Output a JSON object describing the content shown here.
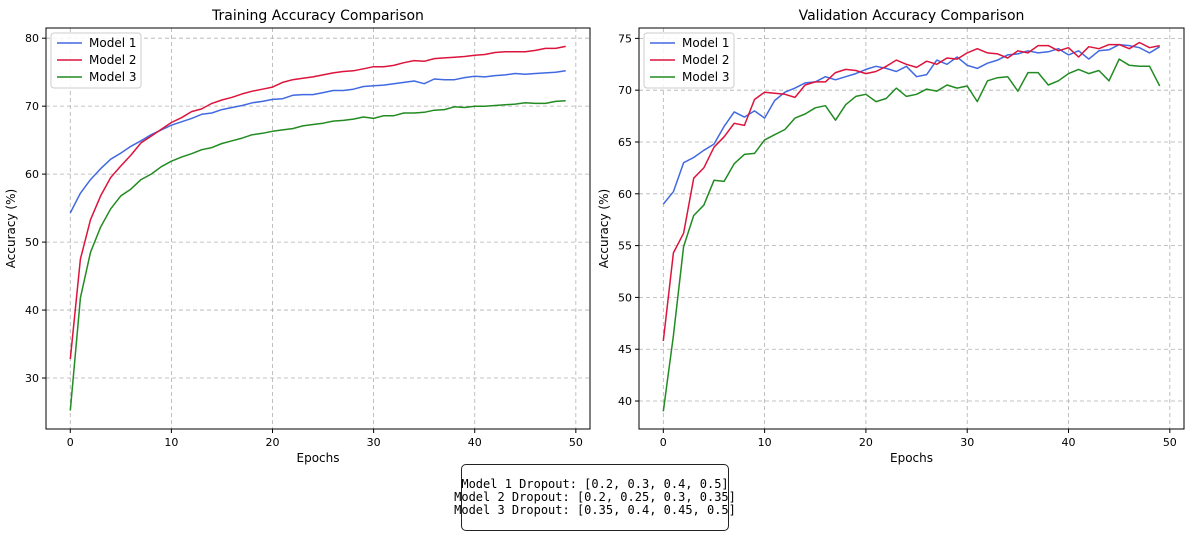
{
  "chart_data": [
    {
      "type": "line",
      "title": "Training Accuracy Comparison",
      "xlabel": "Epochs",
      "ylabel": "Accuracy (%)",
      "xlim": [
        -2.4,
        51.4
      ],
      "ylim": [
        22.5,
        81.5
      ],
      "xticks": [
        0,
        10,
        20,
        30,
        40,
        50
      ],
      "yticks": [
        30,
        40,
        50,
        60,
        70,
        80
      ],
      "grid": true,
      "legend_position": "top-left",
      "x": [
        0,
        1,
        2,
        3,
        4,
        5,
        6,
        7,
        8,
        9,
        10,
        11,
        12,
        13,
        14,
        15,
        16,
        17,
        18,
        19,
        20,
        21,
        22,
        23,
        24,
        25,
        26,
        27,
        28,
        29,
        30,
        31,
        32,
        33,
        34,
        35,
        36,
        37,
        38,
        39,
        40,
        41,
        42,
        43,
        44,
        45,
        46,
        47,
        48,
        49
      ],
      "series": [
        {
          "name": "Model 1",
          "color": "#4169E1",
          "values": [
            54.3,
            57.2,
            59.2,
            60.8,
            62.2,
            63.1,
            64.1,
            64.9,
            65.8,
            66.5,
            67.2,
            67.7,
            68.2,
            68.8,
            69.0,
            69.5,
            69.8,
            70.1,
            70.5,
            70.7,
            71.0,
            71.1,
            71.6,
            71.7,
            71.7,
            72.0,
            72.3,
            72.3,
            72.5,
            72.9,
            73.0,
            73.1,
            73.3,
            73.5,
            73.7,
            73.3,
            74.0,
            73.9,
            73.9,
            74.2,
            74.4,
            74.3,
            74.5,
            74.6,
            74.8,
            74.7,
            74.8,
            74.9,
            75.0,
            75.2
          ]
        },
        {
          "name": "Model 2",
          "color": "#DC143C",
          "values": [
            32.8,
            47.5,
            53.3,
            56.8,
            59.5,
            61.2,
            62.8,
            64.6,
            65.6,
            66.6,
            67.6,
            68.3,
            69.2,
            69.6,
            70.4,
            70.9,
            71.3,
            71.8,
            72.2,
            72.5,
            72.8,
            73.5,
            73.9,
            74.1,
            74.3,
            74.6,
            74.9,
            75.1,
            75.2,
            75.5,
            75.8,
            75.8,
            76.0,
            76.4,
            76.7,
            76.6,
            77.0,
            77.1,
            77.2,
            77.3,
            77.5,
            77.6,
            77.9,
            78.0,
            78.0,
            78.0,
            78.2,
            78.5,
            78.5,
            78.8
          ]
        },
        {
          "name": "Model 3",
          "color": "#228B22",
          "values": [
            25.2,
            41.8,
            48.5,
            52.2,
            54.9,
            56.8,
            57.8,
            59.2,
            60.0,
            61.1,
            61.9,
            62.5,
            63.0,
            63.6,
            63.9,
            64.5,
            64.9,
            65.3,
            65.8,
            66.0,
            66.3,
            66.5,
            66.7,
            67.1,
            67.3,
            67.5,
            67.8,
            67.9,
            68.1,
            68.4,
            68.2,
            68.6,
            68.6,
            69.0,
            69.0,
            69.1,
            69.4,
            69.5,
            69.9,
            69.8,
            70.0,
            70.0,
            70.1,
            70.2,
            70.3,
            70.5,
            70.4,
            70.4,
            70.7,
            70.8
          ]
        }
      ]
    },
    {
      "type": "line",
      "title": "Validation Accuracy Comparison",
      "xlabel": "Epochs",
      "ylabel": "Accuracy (%)",
      "xlim": [
        -2.4,
        51.4
      ],
      "ylim": [
        37.3,
        76.0
      ],
      "xticks": [
        0,
        10,
        20,
        30,
        40,
        50
      ],
      "yticks": [
        40,
        45,
        50,
        55,
        60,
        65,
        70,
        75
      ],
      "grid": true,
      "legend_position": "top-left",
      "x": [
        0,
        1,
        2,
        3,
        4,
        5,
        6,
        7,
        8,
        9,
        10,
        11,
        12,
        13,
        14,
        15,
        16,
        17,
        18,
        19,
        20,
        21,
        22,
        23,
        24,
        25,
        26,
        27,
        28,
        29,
        30,
        31,
        32,
        33,
        34,
        35,
        36,
        37,
        38,
        39,
        40,
        41,
        42,
        43,
        44,
        45,
        46,
        47,
        48,
        49
      ],
      "series": [
        {
          "name": "Model 1",
          "color": "#4169E1",
          "values": [
            59.0,
            60.2,
            63.0,
            63.5,
            64.2,
            64.8,
            66.5,
            67.9,
            67.4,
            68.0,
            67.3,
            69.0,
            69.8,
            70.2,
            70.7,
            70.8,
            71.3,
            71.0,
            71.3,
            71.6,
            72.0,
            72.3,
            72.1,
            71.8,
            72.3,
            71.3,
            71.5,
            72.9,
            72.5,
            73.2,
            72.4,
            72.1,
            72.6,
            72.9,
            73.4,
            73.5,
            73.8,
            73.6,
            73.7,
            74.0,
            73.4,
            73.8,
            73.0,
            73.8,
            73.9,
            74.4,
            74.3,
            74.1,
            73.6,
            74.2
          ]
        },
        {
          "name": "Model 2",
          "color": "#DC143C",
          "values": [
            45.8,
            54.3,
            56.2,
            61.5,
            62.5,
            64.5,
            65.5,
            66.8,
            66.6,
            69.1,
            69.8,
            69.7,
            69.6,
            69.3,
            70.5,
            70.8,
            70.8,
            71.7,
            72.0,
            71.9,
            71.6,
            71.8,
            72.3,
            72.9,
            72.5,
            72.2,
            72.8,
            72.5,
            73.1,
            73.0,
            73.6,
            74.0,
            73.6,
            73.5,
            73.1,
            73.8,
            73.6,
            74.3,
            74.3,
            73.8,
            74.1,
            73.2,
            74.2,
            74.0,
            74.4,
            74.4,
            74.0,
            74.6,
            74.1,
            74.3
          ]
        },
        {
          "name": "Model 3",
          "color": "#228B22",
          "values": [
            39.0,
            46.3,
            54.9,
            57.9,
            58.9,
            61.3,
            61.2,
            62.9,
            63.8,
            63.9,
            65.2,
            65.7,
            66.2,
            67.3,
            67.7,
            68.3,
            68.5,
            67.1,
            68.6,
            69.4,
            69.6,
            68.9,
            69.2,
            70.2,
            69.4,
            69.6,
            70.1,
            69.9,
            70.5,
            70.2,
            70.4,
            68.9,
            70.9,
            71.2,
            71.3,
            69.9,
            71.7,
            71.7,
            70.5,
            70.9,
            71.6,
            72.0,
            71.6,
            71.9,
            70.9,
            73.0,
            72.4,
            72.3,
            72.3,
            70.4
          ]
        }
      ]
    }
  ],
  "note": {
    "lines": [
      "Model 1 Dropout: [0.2, 0.3, 0.4, 0.5]",
      "Model 2 Dropout: [0.2, 0.25, 0.3, 0.35]",
      "Model 3 Dropout: [0.35, 0.4, 0.45, 0.5]"
    ]
  }
}
